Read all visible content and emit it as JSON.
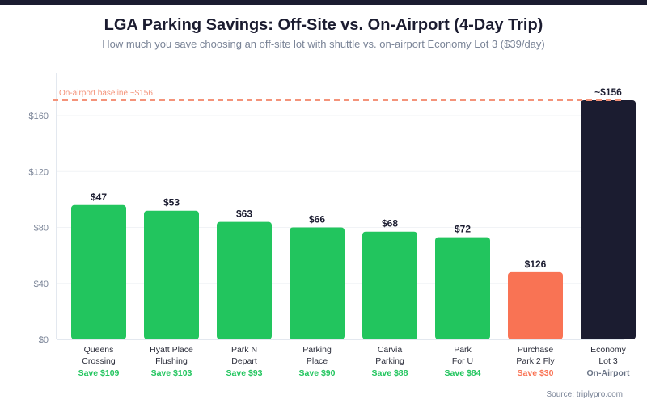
{
  "header": {
    "title": "LGA Parking Savings: Off-Site vs. On-Airport (4-Day Trip)",
    "subtitle": "How much you save choosing an off-site lot with shuttle vs. on-airport Economy Lot 3 ($39/day)"
  },
  "footer": {
    "source": "Source: triplypro.com"
  },
  "colors": {
    "green": "#22c55e",
    "orange": "#f97354",
    "dark": "#1b1c30",
    "baseline": "#f4937a",
    "axis_text": "#7a8497",
    "grid": "#f1f3f6",
    "axis_line": "#e3e8ef"
  },
  "chart_data": {
    "type": "bar",
    "title": "LGA Parking Savings: Off-Site vs. On-Airport (4-Day Trip)",
    "subtitle": "How much you save choosing an off-site lot with shuttle vs. on-airport Economy Lot 3 ($39/day)",
    "xlabel": "",
    "ylabel": "",
    "ylim": [
      0,
      175
    ],
    "yticks": [
      0,
      40,
      80,
      120,
      160
    ],
    "ytick_labels": [
      "$0",
      "$40",
      "$80",
      "$120",
      "$160"
    ],
    "grid": true,
    "categories": [
      [
        "Queens",
        "Crossing"
      ],
      [
        "Hyatt Place",
        "Flushing"
      ],
      [
        "Park N",
        "Depart"
      ],
      [
        "Parking",
        "Place"
      ],
      [
        "Carvia",
        "Parking"
      ],
      [
        "Park",
        "For U"
      ],
      [
        "Purchase",
        "Park 2 Fly"
      ],
      [
        "Economy",
        "Lot 3"
      ]
    ],
    "values": [
      96,
      92,
      84,
      80,
      77,
      73,
      48,
      171
    ],
    "value_labels": [
      "$47",
      "$53",
      "$63",
      "$66",
      "$68",
      "$72",
      "$126",
      "~$156"
    ],
    "costs": [
      47,
      53,
      63,
      66,
      68,
      72,
      126,
      156
    ],
    "savings_labels": [
      "Save $109",
      "Save $103",
      "Save $93",
      "Save $90",
      "Save $88",
      "Save $84",
      "Save $30",
      "On-Airport"
    ],
    "savings": [
      109,
      103,
      93,
      90,
      88,
      84,
      30,
      null
    ],
    "bar_kinds": [
      "green",
      "green",
      "green",
      "green",
      "green",
      "green",
      "orange",
      "dark"
    ],
    "reference_line": {
      "value": 171,
      "label": "On-airport baseline ~$156",
      "style": "dashed"
    }
  }
}
